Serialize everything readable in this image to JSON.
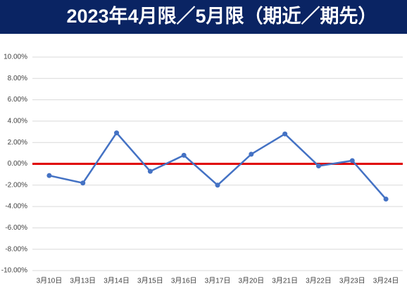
{
  "chart_data": {
    "type": "line",
    "title": "2023年4月限／5月限（期近／期先）",
    "categories": [
      "3月10日",
      "3月13日",
      "3月14日",
      "3月15日",
      "3月16日",
      "3月17日",
      "3月20日",
      "3月21日",
      "3月22日",
      "3月23日",
      "3月24日"
    ],
    "series": [
      {
        "name": "期近／期先",
        "color": "#4472c4",
        "values": [
          -1.1,
          -1.8,
          2.9,
          -0.7,
          0.8,
          -2.0,
          0.9,
          2.8,
          -0.2,
          0.3,
          -3.3
        ]
      }
    ],
    "reference_line": {
      "value": 0,
      "color": "#e00000"
    },
    "ylim": [
      -10,
      10
    ],
    "yticks": [
      {
        "value": -10,
        "label": "-10.00%"
      },
      {
        "value": -8,
        "label": "-8.00%"
      },
      {
        "value": -6,
        "label": "-6.00%"
      },
      {
        "value": -4,
        "label": "-4.00%"
      },
      {
        "value": -2,
        "label": "-2.00%"
      },
      {
        "value": 0,
        "label": "0.00%"
      },
      {
        "value": 2,
        "label": "2.00%"
      },
      {
        "value": 4,
        "label": "4.00%"
      },
      {
        "value": 6,
        "label": "6.00%"
      },
      {
        "value": 8,
        "label": "8.00%"
      },
      {
        "value": 10,
        "label": "10.00%"
      }
    ],
    "grid": true
  }
}
